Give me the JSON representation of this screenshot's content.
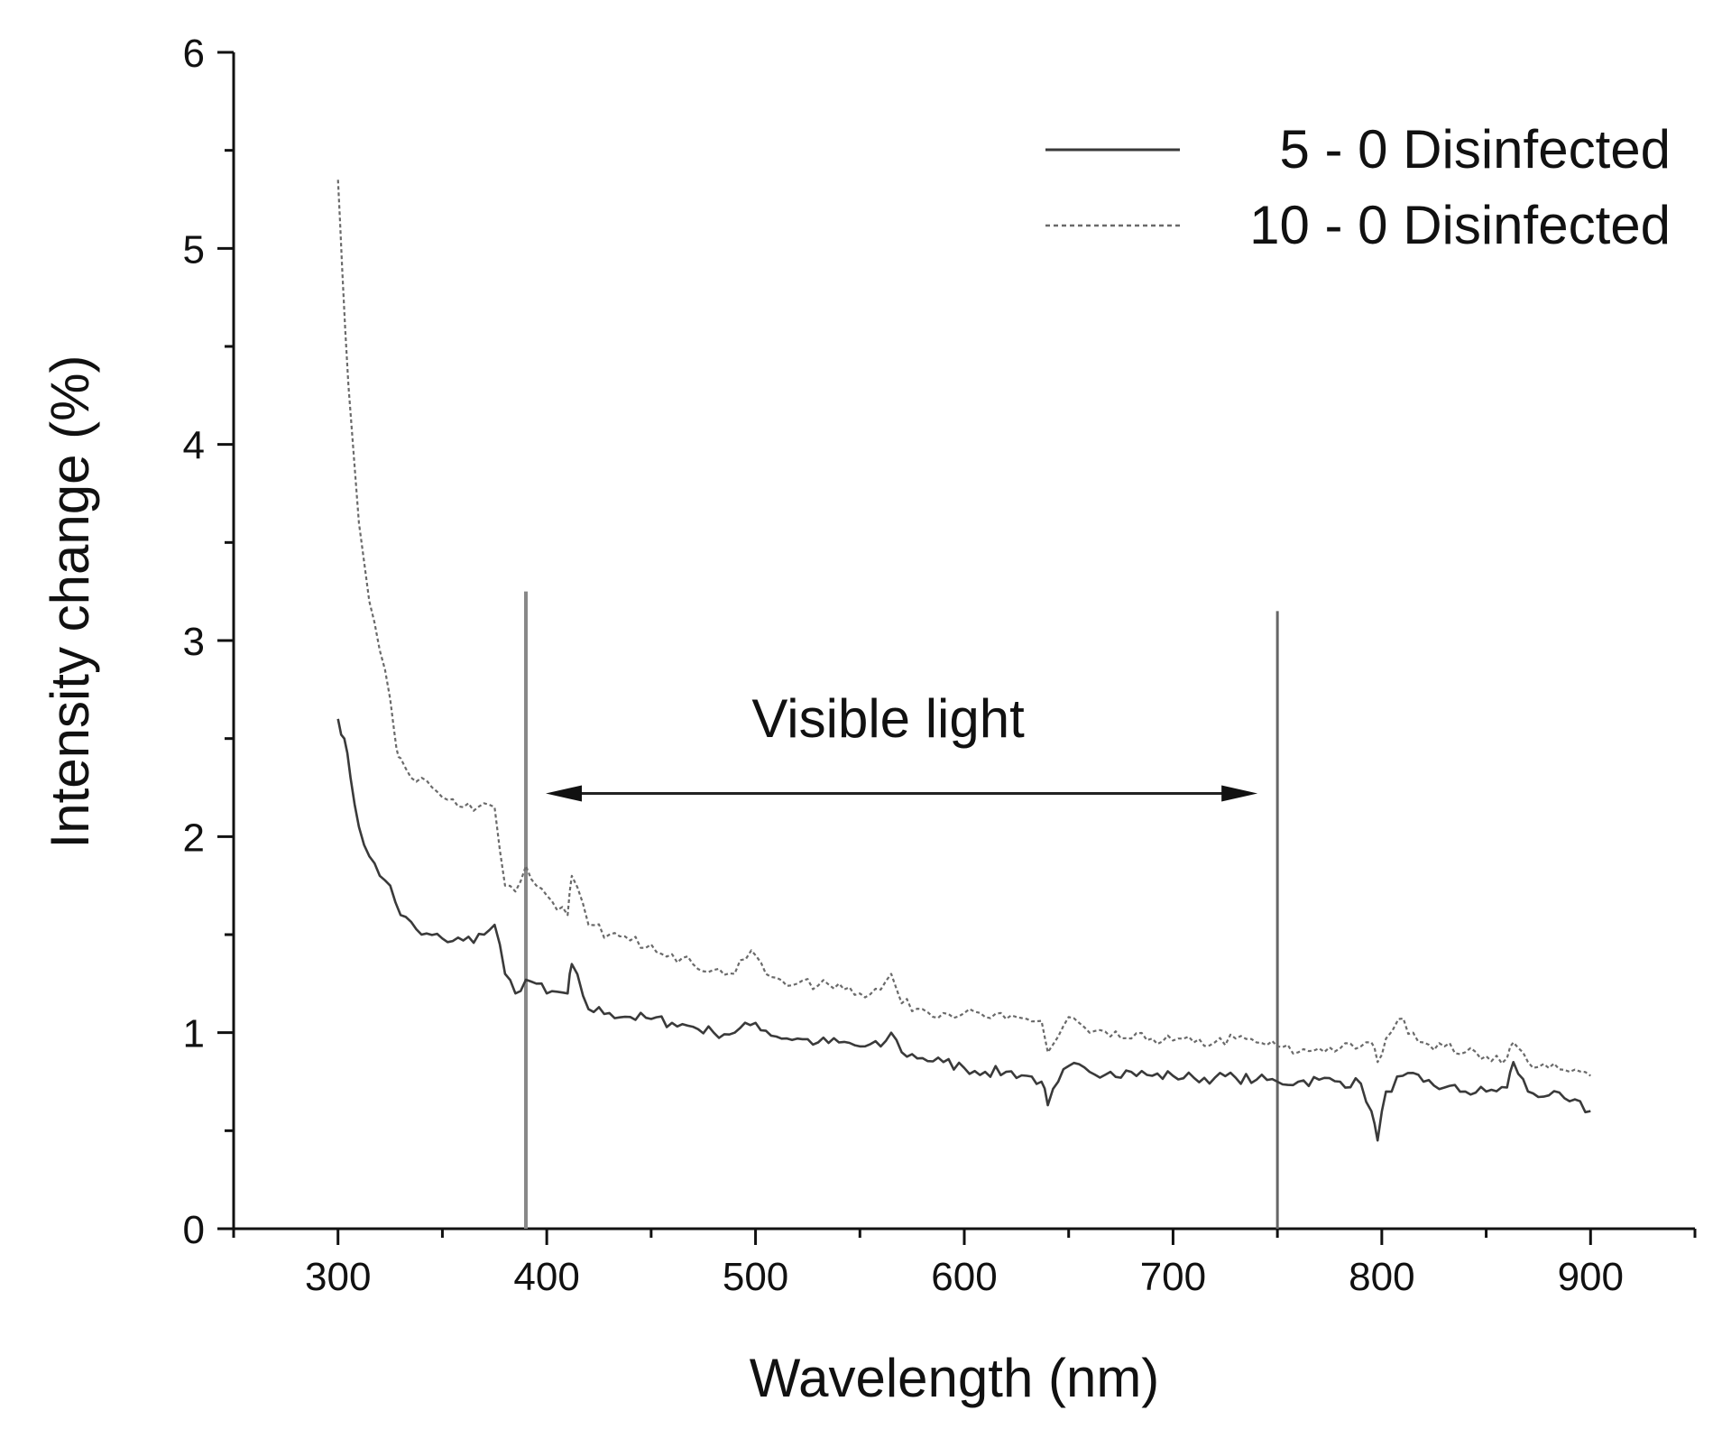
{
  "chart_data": {
    "type": "line",
    "xlabel": "Wavelength (nm)",
    "ylabel": "Intensity change (%)",
    "xlim": [
      250,
      950
    ],
    "ylim": [
      0,
      6
    ],
    "xticks": [
      300,
      400,
      500,
      600,
      700,
      800,
      900
    ],
    "yticks": [
      0,
      1,
      2,
      3,
      4,
      5,
      6
    ],
    "grid": false,
    "legend_position": "top-right",
    "series": [
      {
        "name": "5 - 0 Disinfected",
        "style": "solid",
        "color": "#3a3a3a",
        "x": [
          300,
          303,
          306,
          310,
          315,
          320,
          325,
          330,
          340,
          350,
          360,
          370,
          375,
          380,
          385,
          390,
          395,
          400,
          410,
          412,
          420,
          430,
          440,
          450,
          460,
          470,
          480,
          490,
          500,
          510,
          520,
          530,
          540,
          550,
          560,
          565,
          570,
          580,
          590,
          600,
          610,
          620,
          630,
          637,
          640,
          645,
          650,
          660,
          670,
          680,
          690,
          700,
          710,
          720,
          730,
          740,
          750,
          760,
          770,
          780,
          790,
          795,
          798,
          802,
          810,
          820,
          830,
          840,
          850,
          860,
          863,
          870,
          880,
          890,
          900
        ],
        "values": [
          2.6,
          2.5,
          2.3,
          2.05,
          1.9,
          1.8,
          1.75,
          1.6,
          1.5,
          1.48,
          1.47,
          1.5,
          1.55,
          1.3,
          1.2,
          1.27,
          1.25,
          1.2,
          1.2,
          1.35,
          1.12,
          1.1,
          1.08,
          1.07,
          1.05,
          1.03,
          1.0,
          1.0,
          1.05,
          0.98,
          0.97,
          0.95,
          0.95,
          0.93,
          0.93,
          1.0,
          0.9,
          0.87,
          0.85,
          0.82,
          0.8,
          0.8,
          0.78,
          0.75,
          0.63,
          0.75,
          0.83,
          0.8,
          0.8,
          0.8,
          0.78,
          0.78,
          0.77,
          0.77,
          0.77,
          0.76,
          0.75,
          0.75,
          0.76,
          0.75,
          0.74,
          0.6,
          0.45,
          0.7,
          0.78,
          0.75,
          0.72,
          0.7,
          0.7,
          0.72,
          0.85,
          0.7,
          0.68,
          0.65,
          0.6
        ]
      },
      {
        "name": "10 - 0 Disinfected",
        "style": "dotted",
        "color": "#6a6a6a",
        "x": [
          300,
          302,
          305,
          310,
          315,
          320,
          325,
          328,
          330,
          335,
          340,
          350,
          360,
          370,
          375,
          380,
          385,
          390,
          395,
          400,
          410,
          412,
          420,
          430,
          440,
          450,
          460,
          470,
          480,
          490,
          498,
          505,
          510,
          520,
          530,
          540,
          550,
          560,
          565,
          570,
          580,
          590,
          600,
          610,
          620,
          630,
          637,
          640,
          645,
          650,
          660,
          670,
          680,
          690,
          700,
          710,
          720,
          730,
          740,
          750,
          760,
          770,
          780,
          790,
          795,
          798,
          802,
          808,
          815,
          820,
          830,
          840,
          850,
          860,
          863,
          870,
          880,
          890,
          900
        ],
        "values": [
          5.35,
          4.9,
          4.3,
          3.6,
          3.2,
          2.95,
          2.7,
          2.45,
          2.4,
          2.3,
          2.3,
          2.2,
          2.15,
          2.17,
          2.15,
          1.75,
          1.72,
          1.85,
          1.75,
          1.7,
          1.6,
          1.8,
          1.55,
          1.5,
          1.47,
          1.45,
          1.4,
          1.35,
          1.32,
          1.3,
          1.42,
          1.3,
          1.28,
          1.25,
          1.24,
          1.25,
          1.2,
          1.22,
          1.3,
          1.15,
          1.12,
          1.1,
          1.1,
          1.08,
          1.07,
          1.07,
          1.06,
          0.9,
          0.98,
          1.08,
          1.0,
          0.98,
          0.97,
          0.97,
          0.96,
          0.95,
          0.95,
          0.97,
          0.95,
          0.93,
          0.9,
          0.92,
          0.92,
          0.93,
          0.95,
          0.85,
          0.97,
          1.07,
          1.0,
          0.95,
          0.93,
          0.9,
          0.88,
          0.87,
          0.95,
          0.85,
          0.82,
          0.8,
          0.78
        ]
      }
    ],
    "annotations": {
      "visible_region": {
        "label": "Visible light",
        "x_start": 390,
        "x_end": 750,
        "line_top_start": 3.25,
        "line_top_end": 3.15,
        "arrow_y": 2.22,
        "label_y": 2.6
      }
    }
  }
}
